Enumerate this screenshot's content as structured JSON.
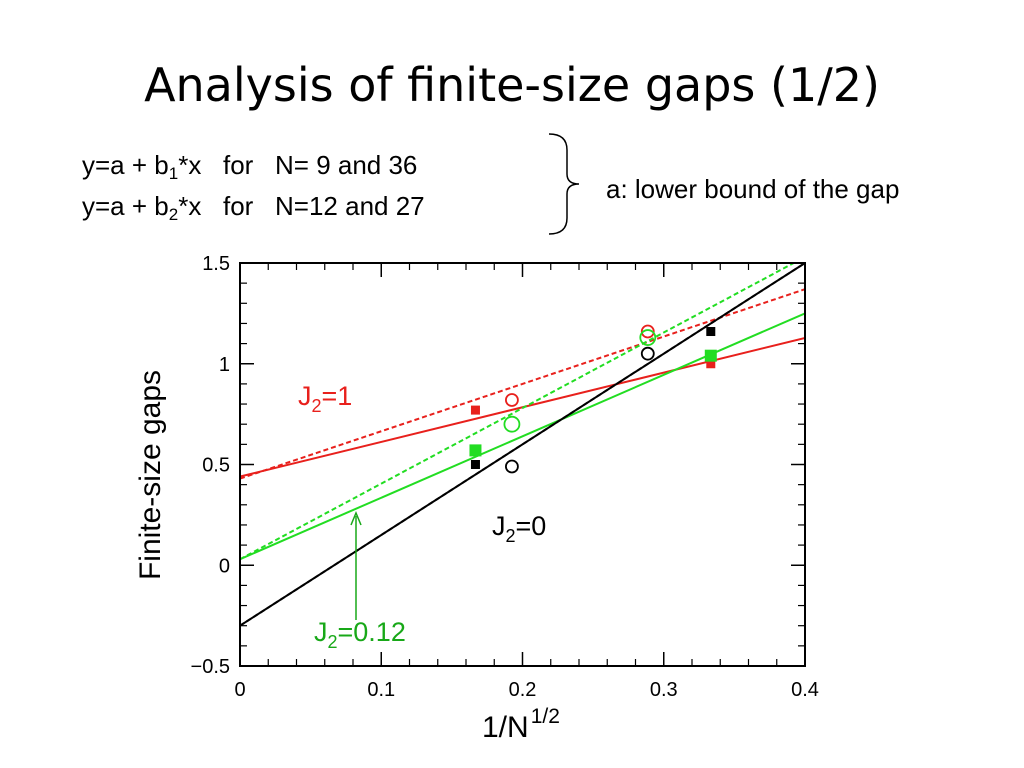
{
  "slide": {
    "title": "Analysis of finite-size gaps (1/2)",
    "eq1": {
      "pre": "y=a + b",
      "sub": "1",
      "post": "*x   for   N= 9 and 36"
    },
    "eq2": {
      "pre": "y=a + b",
      "sub": "2",
      "post": "*x   for   N=12 and 27"
    },
    "note": "a: lower bound of the gap"
  },
  "chart_data": {
    "type": "scatter",
    "title": "",
    "xlabel": "1/N",
    "xlabel_sup": "1/2",
    "ylabel": "Finite-size  gaps",
    "xlim": [
      0,
      0.4
    ],
    "ylim": [
      -0.5,
      1.5
    ],
    "xticks": [
      "0",
      "0.1",
      "0.2",
      "0.3",
      "0.4"
    ],
    "yticks": [
      "-0.5",
      "0",
      "0.5",
      "1",
      "1.5"
    ],
    "grid": false,
    "series": [
      {
        "name": "J2=1",
        "label": {
          "pre": "J",
          "sub": "2",
          "post": "=1"
        },
        "color": "#e8201c",
        "filled": [
          [
            0.1667,
            0.77
          ],
          [
            0.3333,
            1.0
          ]
        ],
        "open": [
          [
            0.1925,
            0.82
          ],
          [
            0.2887,
            1.16
          ]
        ],
        "fit_solid": {
          "a": 0.44,
          "b": 1.72
        },
        "fit_dashed": {
          "a": 0.43,
          "b": 2.35
        }
      },
      {
        "name": "J2=0.12",
        "label": {
          "pre": "J",
          "sub": "2",
          "post": "=0.12"
        },
        "color": "#22dd22",
        "label_color": "#18a818",
        "filled": [
          [
            0.1667,
            0.57
          ],
          [
            0.3333,
            1.04
          ]
        ],
        "open": [
          [
            0.1925,
            0.7
          ],
          [
            0.2887,
            1.13
          ]
        ],
        "fit_solid": {
          "a": 0.03,
          "b": 3.05
        },
        "fit_dashed": {
          "a": 0.03,
          "b": 3.75
        }
      },
      {
        "name": "J2=0",
        "label": {
          "pre": "J",
          "sub": "2",
          "post": "=0"
        },
        "color": "#000000",
        "filled": [
          [
            0.1667,
            0.5
          ],
          [
            0.3333,
            1.16
          ]
        ],
        "open": [
          [
            0.1925,
            0.49
          ],
          [
            0.2887,
            1.05
          ]
        ],
        "fit_solid": {
          "a": -0.3,
          "b": 4.5
        },
        "fit_dashed": {
          "a": -0.3,
          "b": 4.5
        }
      }
    ]
  }
}
